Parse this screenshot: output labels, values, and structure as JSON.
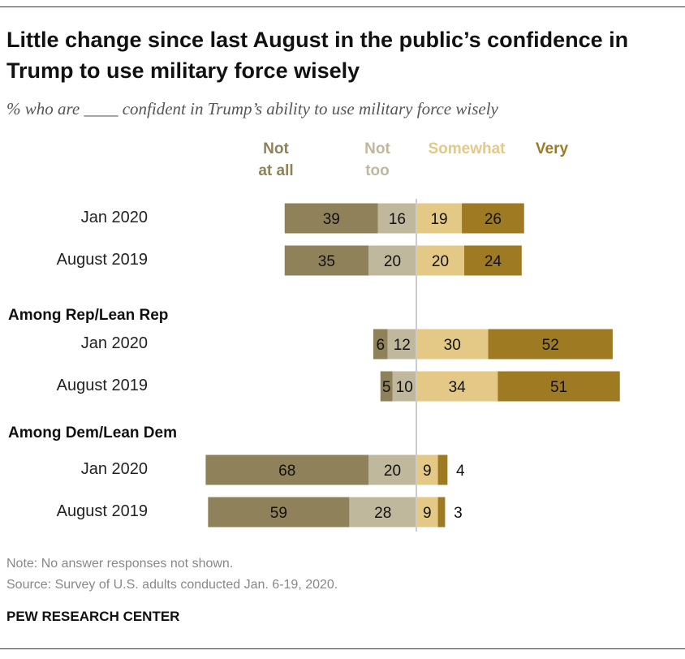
{
  "title": "Little change since last August in the public’s confidence in Trump to use military force wisely",
  "subtitle": "% who are ____ confident in Trump’s ability to use military force wisely",
  "note": "Note: No answer responses not shown.",
  "source": "Source: Survey of U.S. adults conducted Jan. 6-19, 2020.",
  "brand": "PEW RESEARCH CENTER",
  "chart_data": {
    "type": "bar",
    "orientation": "horizontal-diverging",
    "legend": [
      {
        "name": "Not at all",
        "color": "#8f825a"
      },
      {
        "name": "Not too",
        "color": "#c0b89c"
      },
      {
        "name": "Somewhat",
        "color": "#e3c985"
      },
      {
        "name": "Very",
        "color": "#9e7a23"
      }
    ],
    "groups": [
      {
        "label": "",
        "rows": [
          {
            "label": "Jan 2020",
            "values": [
              39,
              16,
              19,
              26
            ]
          },
          {
            "label": "August 2019",
            "values": [
              35,
              20,
              20,
              24
            ]
          }
        ]
      },
      {
        "label": "Among Rep/Lean Rep",
        "rows": [
          {
            "label": "Jan 2020",
            "values": [
              6,
              12,
              30,
              52
            ]
          },
          {
            "label": "August 2019",
            "values": [
              5,
              10,
              34,
              51
            ]
          }
        ]
      },
      {
        "label": "Among Dem/Lean Dem",
        "rows": [
          {
            "label": "Jan 2020",
            "values": [
              68,
              20,
              9,
              4
            ]
          },
          {
            "label": "August 2019",
            "values": [
              59,
              28,
              9,
              3
            ]
          }
        ]
      }
    ]
  }
}
